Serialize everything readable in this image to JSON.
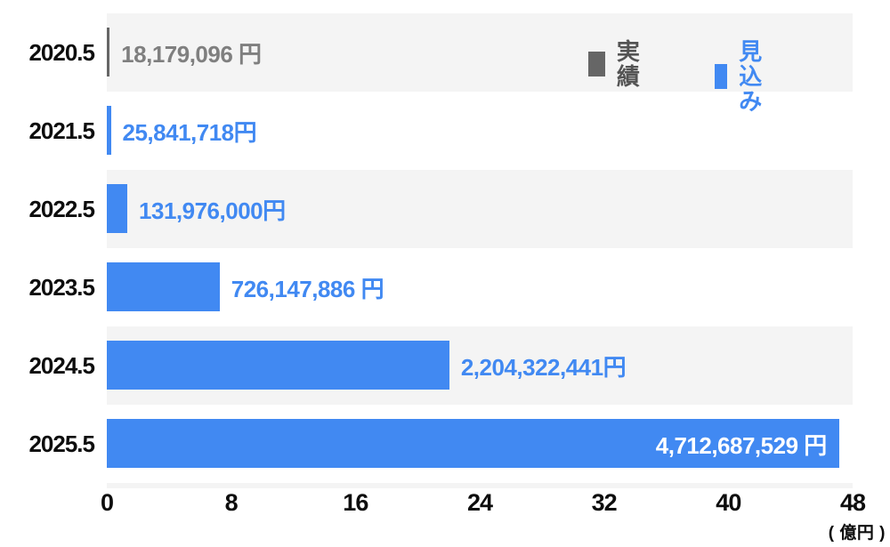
{
  "chart_data": {
    "type": "bar",
    "orientation": "horizontal",
    "unit_label": "( 億円 )",
    "axis": {
      "ticks": [
        "0",
        "8",
        "16",
        "24",
        "32",
        "40",
        "48"
      ],
      "max_oku": 48,
      "unit": "億円",
      "grid": false
    },
    "legend_position": "top-right",
    "legend": [
      {
        "label": "実績",
        "color": "#666666",
        "text_color": "#545454"
      },
      {
        "label": "見込み",
        "color": "#4189f2",
        "text_color": "#4189f2"
      }
    ],
    "rows": [
      {
        "category": "2020.5",
        "series": "実績",
        "value_yen": 18179096,
        "value_oku": 0.18,
        "value_label": "18,179,096 円",
        "label_inside": false
      },
      {
        "category": "2021.5",
        "series": "見込み",
        "value_yen": 25841718,
        "value_oku": 0.26,
        "value_label": "25,841,718円",
        "label_inside": false
      },
      {
        "category": "2022.5",
        "series": "見込み",
        "value_yen": 131976000,
        "value_oku": 1.32,
        "value_label": "131,976,000円",
        "label_inside": false
      },
      {
        "category": "2023.5",
        "series": "見込み",
        "value_yen": 726147886,
        "value_oku": 7.26,
        "value_label": "726,147,886 円",
        "label_inside": false
      },
      {
        "category": "2024.5",
        "series": "見込み",
        "value_yen": 2204322441,
        "value_oku": 22.04,
        "value_label": "2,204,322,441円",
        "label_inside": false
      },
      {
        "category": "2025.5",
        "series": "見込み",
        "value_yen": 4712687529,
        "value_oku": 47.13,
        "value_label": "4,712,687,529 円",
        "label_inside": true
      }
    ],
    "colors": {
      "bar_actual": "#666666",
      "bar_forecast": "#4189f2",
      "stripe": "#f4f4f4",
      "value_text_actual": "#7f7f7f",
      "value_text_forecast": "#4189f2",
      "value_text_inside": "#ffffff",
      "axis_text": "#0d0d0d",
      "background": "#ffffff"
    }
  }
}
